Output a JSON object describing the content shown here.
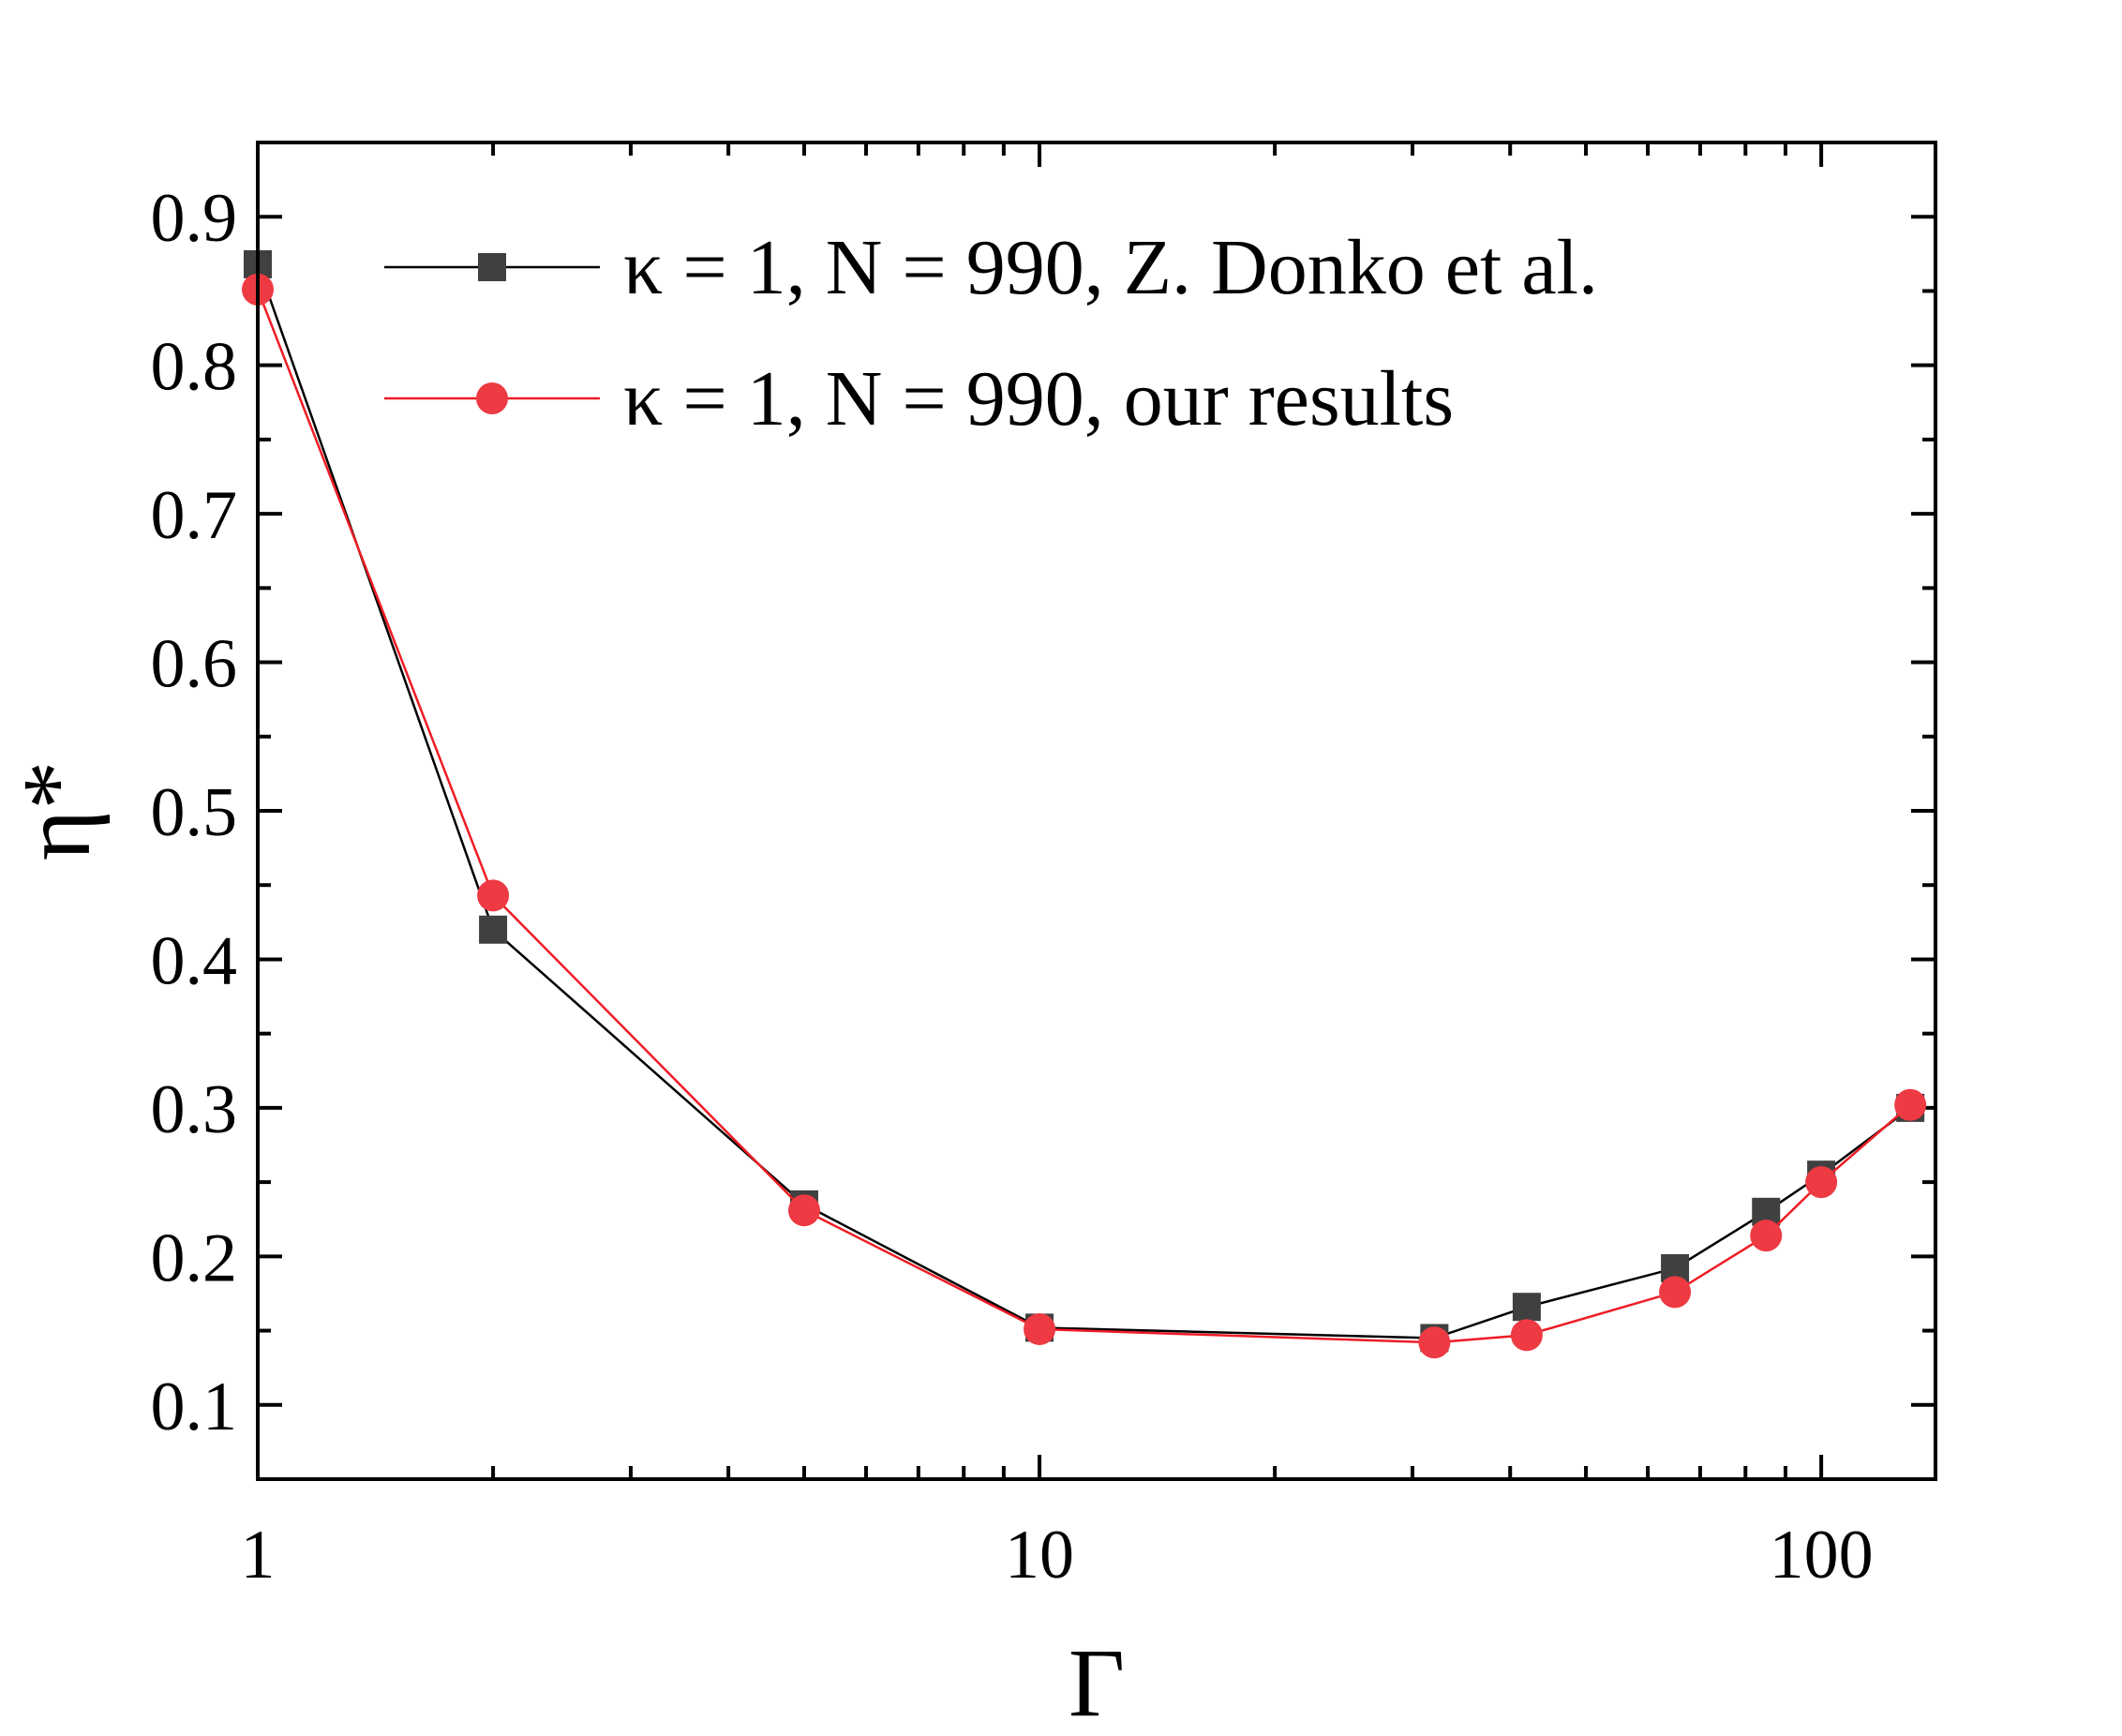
{
  "chart_data": {
    "type": "line",
    "xscale": "log",
    "xlabel": "Γ",
    "ylabel": "η*",
    "xlim": [
      1,
      140
    ],
    "ylim": [
      0.05,
      0.95
    ],
    "xticks_major": [
      1,
      10,
      100
    ],
    "xtick_labels": [
      "1",
      "10",
      "100"
    ],
    "yticks_major": [
      0.1,
      0.2,
      0.3,
      0.4,
      0.5,
      0.6,
      0.7,
      0.8,
      0.9
    ],
    "ytick_labels": [
      "0.1",
      "0.2",
      "0.3",
      "0.4",
      "0.5",
      "0.6",
      "0.7",
      "0.8",
      "0.9"
    ],
    "legend_position": "top-right",
    "series": [
      {
        "name": "κ = 1, N = 990, Z. Donko et al.",
        "marker": "square",
        "color": "#404040",
        "line_color": "#000000",
        "x": [
          1,
          2,
          5,
          10,
          32,
          42,
          65,
          85,
          100,
          130
        ],
        "y": [
          0.868,
          0.42,
          0.235,
          0.152,
          0.145,
          0.166,
          0.192,
          0.23,
          0.255,
          0.3
        ]
      },
      {
        "name": "κ = 1, N = 990, our results",
        "marker": "circle",
        "color": "#ee3a43",
        "line_color": "#ee1c25",
        "x": [
          1,
          2,
          5,
          10,
          32,
          42,
          65,
          85,
          100,
          130
        ],
        "y": [
          0.851,
          0.443,
          0.231,
          0.151,
          0.142,
          0.147,
          0.176,
          0.214,
          0.25,
          0.302
        ]
      }
    ]
  }
}
